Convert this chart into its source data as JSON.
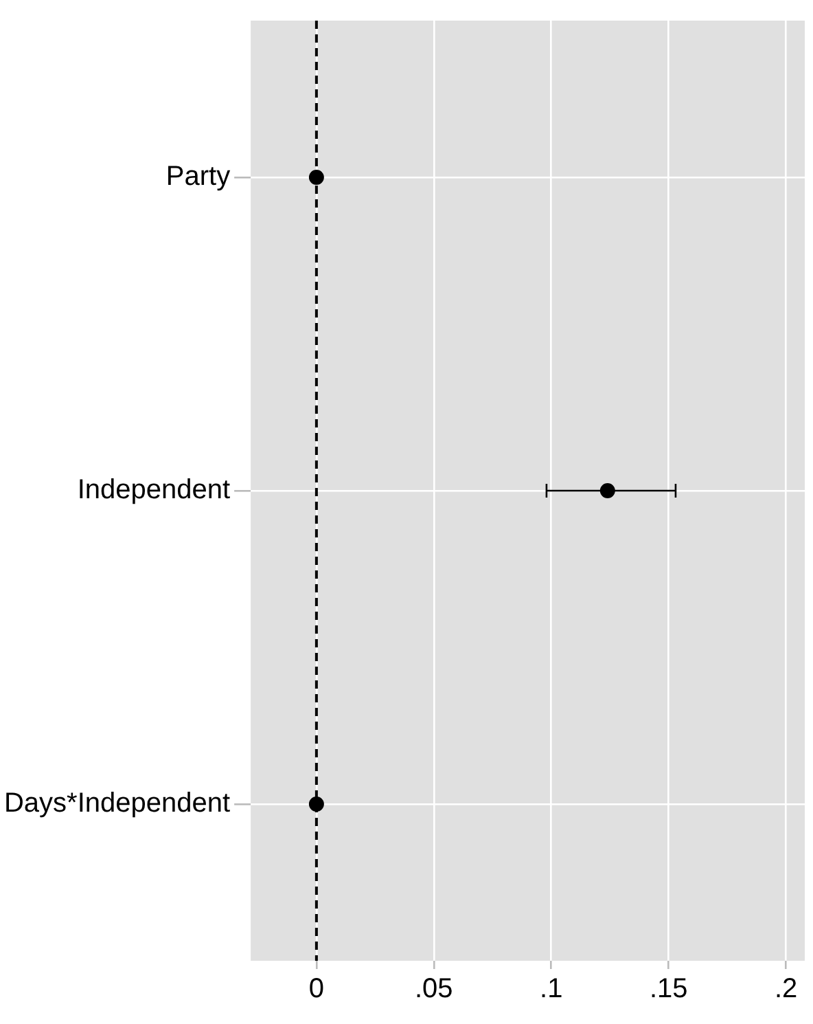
{
  "chart_data": {
    "type": "scatter",
    "orientation": "horizontal",
    "categories": [
      "Party",
      "Independent",
      "Days*Independent"
    ],
    "values": [
      0,
      0.124,
      0
    ],
    "errors": [
      null,
      [
        0.098,
        0.153
      ],
      null
    ],
    "color": "#000000",
    "marker": "circle",
    "xlim": [
      -0.028,
      0.208
    ],
    "xticks": [
      {
        "value": 0,
        "label": "0"
      },
      {
        "value": 0.05,
        "label": ".05"
      },
      {
        "value": 0.1,
        "label": ".1"
      },
      {
        "value": 0.15,
        "label": ".15"
      },
      {
        "value": 0.2,
        "label": ".2"
      }
    ],
    "ref_lines": [
      {
        "axis": "x",
        "value": 0,
        "color": "#000000",
        "line_style": "dashed"
      }
    ],
    "grid": true,
    "legend": false
  }
}
